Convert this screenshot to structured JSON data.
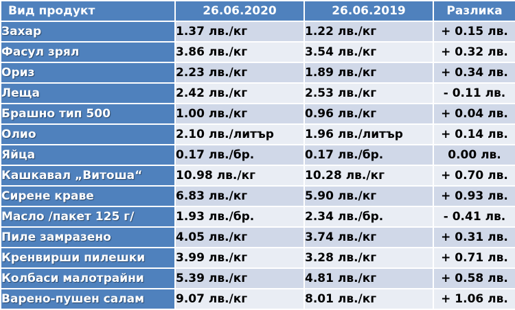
{
  "table": {
    "headers": [
      "Вид продукт",
      "26.06.2020",
      "26.06.2019",
      "Разлика"
    ],
    "rows": [
      {
        "product": "Захар",
        "price_2020": "1.37 лв./кг",
        "price_2019": "1.22 лв./кг",
        "difference": "+ 0.15 лв."
      },
      {
        "product": "Фасул зрял",
        "price_2020": "3.86 лв./кг",
        "price_2019": "3.54 лв./кг",
        "difference": "+ 0.32 лв."
      },
      {
        "product": "Ориз",
        "price_2020": "2.23 лв./кг",
        "price_2019": "1.89 лв./кг",
        "difference": "+ 0.34 лв."
      },
      {
        "product": "Леща",
        "price_2020": "2.42 лв./кг",
        "price_2019": "2.53 лв./кг",
        "difference": "- 0.11 лв."
      },
      {
        "product": "Брашно тип 500",
        "price_2020": "1.00 лв./кг",
        "price_2019": "0.96 лв./кг",
        "difference": "+ 0.04 лв."
      },
      {
        "product": "Олио",
        "price_2020": "2.10 лв./литър",
        "price_2019": "1.96 лв./литър",
        "difference": "+ 0.14 лв."
      },
      {
        "product": "Яйца",
        "price_2020": "0.17 лв./бр.",
        "price_2019": "0.17 лв./бр.",
        "difference": "0.00 лв."
      },
      {
        "product": "Кашкавал „Витоша“",
        "price_2020": "10.98 лв./кг",
        "price_2019": "10.28 лв./кг",
        "difference": "+ 0.70 лв."
      },
      {
        "product": "Сирене краве",
        "price_2020": "6.83 лв./кг",
        "price_2019": "5.90 лв./кг",
        "difference": "+ 0.93 лв."
      },
      {
        "product": "Масло /пакет 125 г/",
        "price_2020": "1.93 лв./бр.",
        "price_2019": "2.34 лв./бр.",
        "difference": "- 0.41 лв."
      },
      {
        "product": "Пиле замразено",
        "price_2020": "4.05 лв./кг",
        "price_2019": "3.74 лв./кг",
        "difference": "+ 0.31 лв."
      },
      {
        "product": "Кренвирши пилешки",
        "price_2020": "3.99 лв./кг",
        "price_2019": "3.28 лв./кг",
        "difference": "+ 0.71 лв."
      },
      {
        "product": "Колбаси малотрайни",
        "price_2020": "5.39 лв./кг",
        "price_2019": "4.81 лв./кг",
        "difference": "+ 0.58 лв."
      },
      {
        "product": "Варено-пушен салам",
        "price_2020": "9.07 лв./кг",
        "price_2019": "8.01 лв./кг",
        "difference": "+ 1.06 лв."
      }
    ]
  },
  "colors": {
    "header_bg": "#4f81bd",
    "row_odd_bg": "#d0d8e8",
    "row_even_bg": "#e9edf4"
  }
}
